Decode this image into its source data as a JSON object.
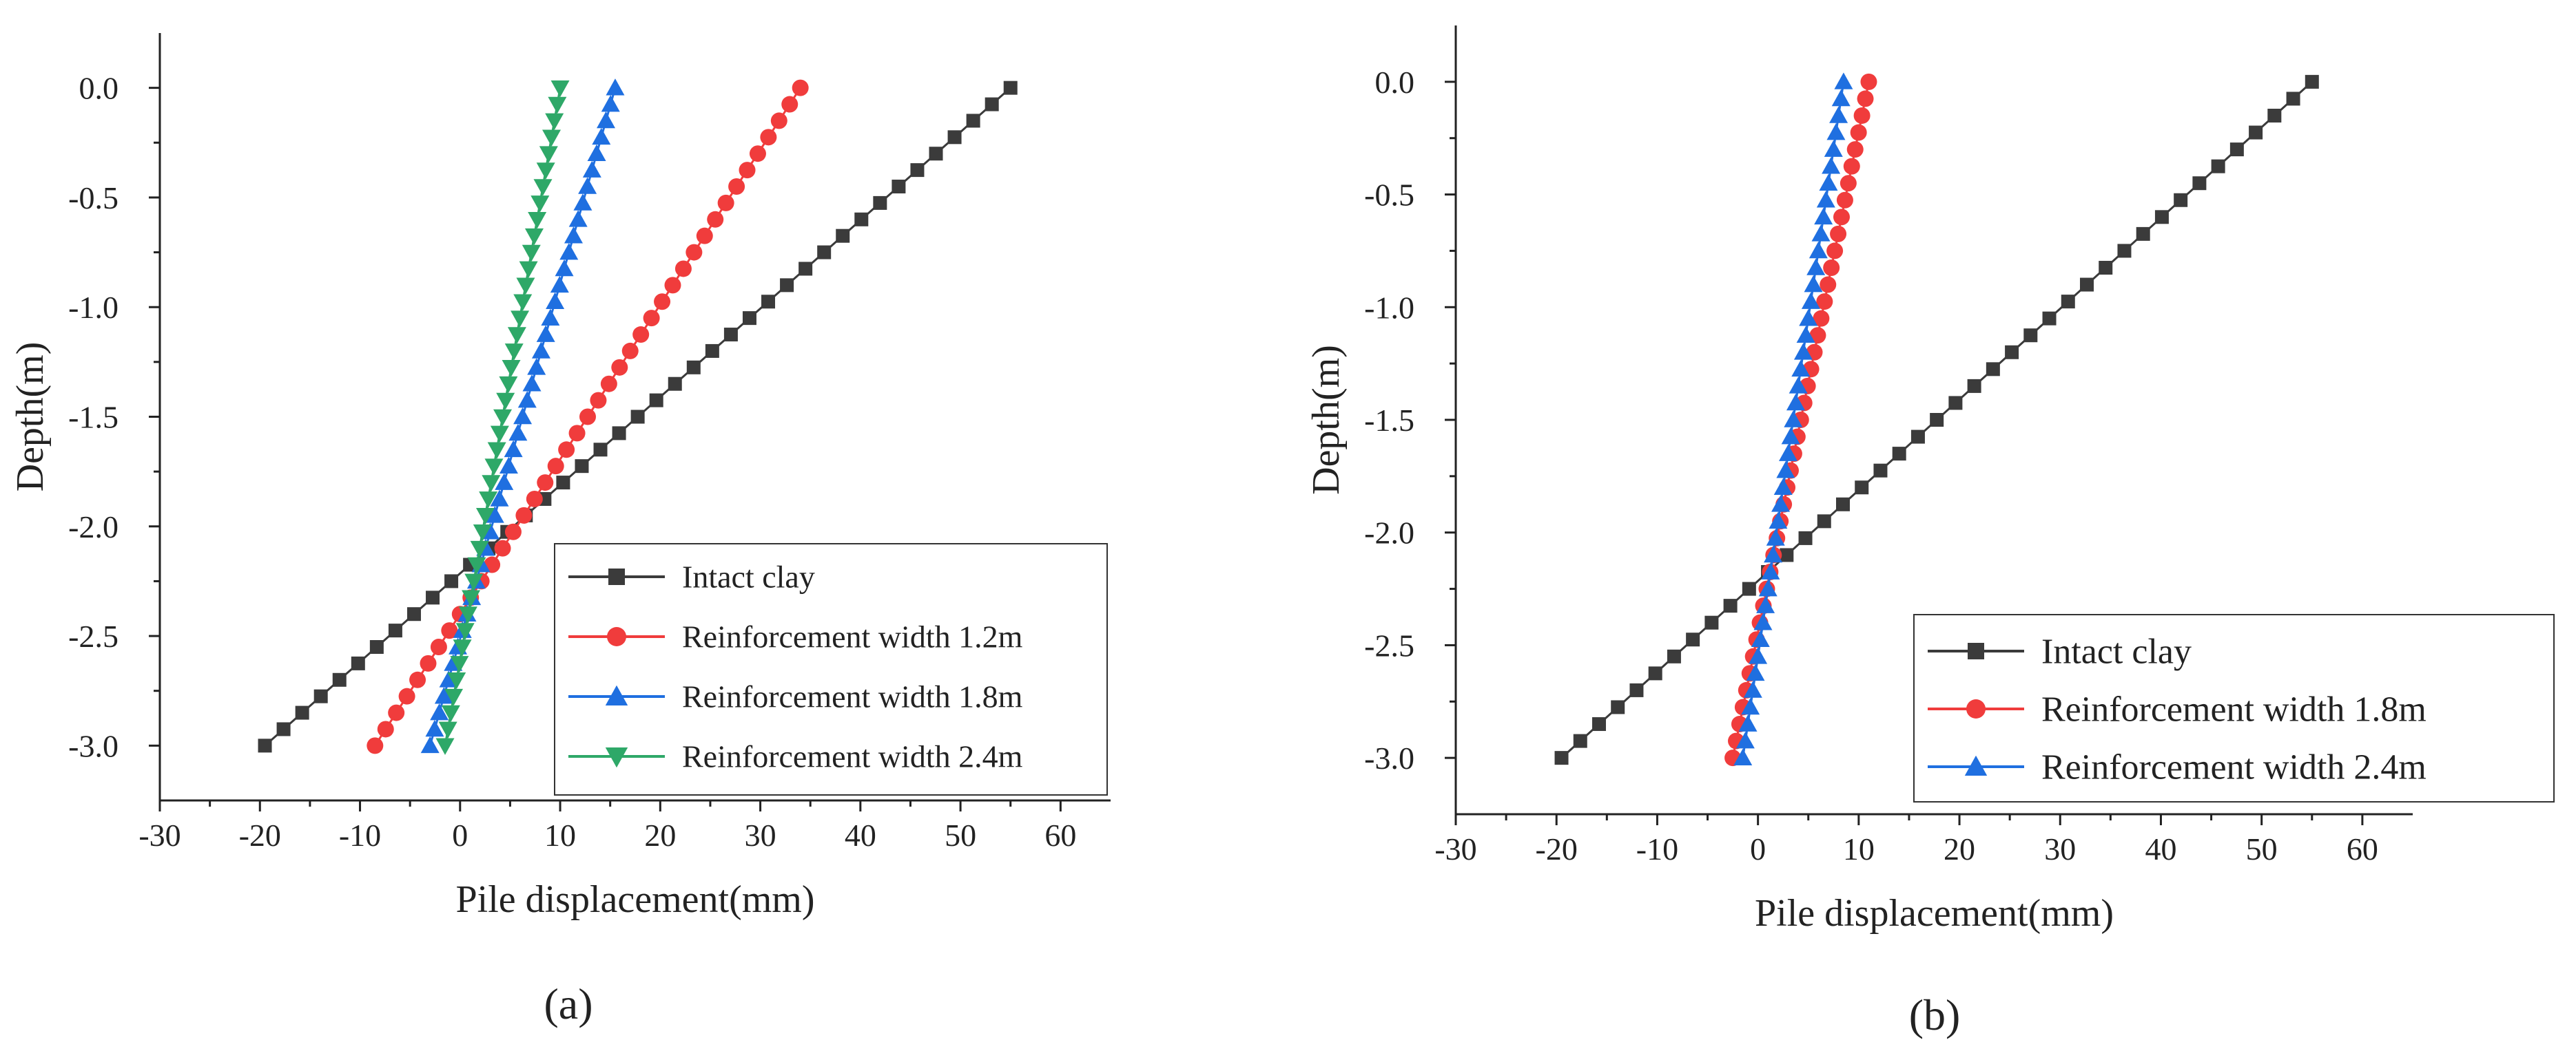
{
  "chart_data": [
    {
      "type": "line",
      "panel_label": "(a)",
      "xlabel": "Pile displacement(mm)",
      "ylabel": "Depth(m)",
      "xlim": [
        -30,
        65
      ],
      "ylim": [
        -3.25,
        0.25
      ],
      "xticks": [
        -30,
        -20,
        -10,
        0,
        10,
        20,
        30,
        40,
        50,
        60
      ],
      "yticks": [
        0.0,
        -0.5,
        -1.0,
        -1.5,
        -2.0,
        -2.5,
        -3.0
      ],
      "xtick_labels": [
        "-30",
        "-20",
        "-10",
        "0",
        "10",
        "20",
        "30",
        "40",
        "50",
        "60"
      ],
      "ytick_labels": [
        "0.0",
        "-0.5",
        "-1.0",
        "-1.5",
        "-2.0",
        "-2.5",
        "-3.0"
      ],
      "grid": false,
      "legend_position": "lower-right",
      "series": [
        {
          "name": "Intact clay",
          "marker": "square",
          "color": "#3b3b3b",
          "top_disp": 55.0,
          "bottom_disp": -19.5,
          "depth_top": 0.0,
          "depth_bottom": -3.0,
          "points": 41
        },
        {
          "name": "Reinforcement width 1.2m",
          "marker": "circle",
          "color": "#f03c3c",
          "top_disp": 34.0,
          "bottom_disp": -8.5,
          "depth_top": 0.0,
          "depth_bottom": -3.0,
          "points": 41
        },
        {
          "name": "Reinforcement width 1.8m",
          "marker": "triangle-up",
          "color": "#1f6fe0",
          "top_disp": 15.5,
          "bottom_disp": -3.0,
          "depth_top": 0.0,
          "depth_bottom": -3.0,
          "points": 41
        },
        {
          "name": "Reinforcement width 2.4m",
          "marker": "triangle-down",
          "color": "#2ea868",
          "top_disp": 10.0,
          "bottom_disp": -1.5,
          "depth_top": 0.0,
          "depth_bottom": -3.0,
          "points": 41
        }
      ]
    },
    {
      "type": "line",
      "panel_label": "(b)",
      "xlabel": "Pile displacement(mm)",
      "ylabel": "Depth(m)",
      "xlim": [
        -30,
        65
      ],
      "ylim": [
        -3.25,
        0.25
      ],
      "xticks": [
        -30,
        -20,
        -10,
        0,
        10,
        20,
        30,
        40,
        50,
        60
      ],
      "yticks": [
        0.0,
        -0.5,
        -1.0,
        -1.5,
        -2.0,
        -2.5,
        -3.0
      ],
      "xtick_labels": [
        "-30",
        "-20",
        "-10",
        "0",
        "10",
        "20",
        "30",
        "40",
        "50",
        "60"
      ],
      "ytick_labels": [
        "0.0",
        "-0.5",
        "-1.0",
        "-1.5",
        "-2.0",
        "-2.5",
        "-3.0"
      ],
      "grid": false,
      "legend_position": "lower-right",
      "series": [
        {
          "name": "Intact clay",
          "marker": "square",
          "color": "#3b3b3b",
          "top_disp": 55.0,
          "bottom_disp": -19.5,
          "depth_top": 0.0,
          "depth_bottom": -3.0,
          "points": 41
        },
        {
          "name": "Reinforcement width 1.8m",
          "marker": "circle",
          "color": "#f03c3c",
          "top_disp": 11.0,
          "bottom_disp": -2.5,
          "depth_top": 0.0,
          "depth_bottom": -3.0,
          "points": 41
        },
        {
          "name": "Reinforcement width 2.4m",
          "marker": "triangle-up",
          "color": "#1f6fe0",
          "top_disp": 8.5,
          "bottom_disp": -1.5,
          "depth_top": 0.0,
          "depth_bottom": -3.0,
          "points": 41
        }
      ]
    }
  ]
}
